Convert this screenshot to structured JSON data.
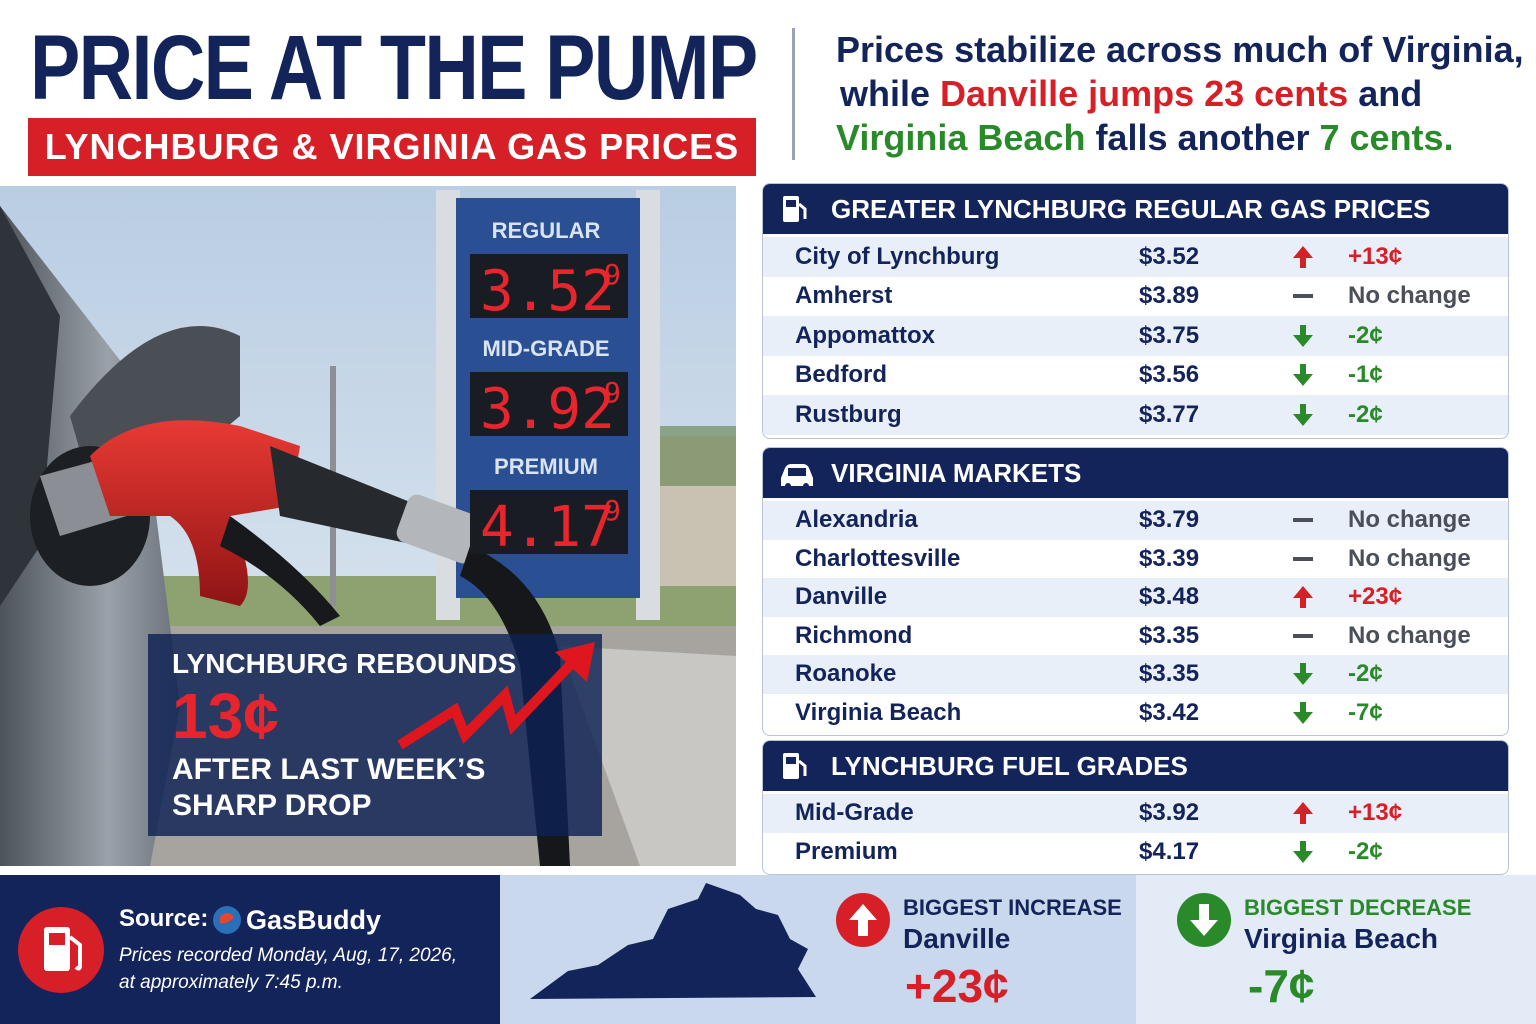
{
  "header": {
    "title": "PRICE AT THE PUMP",
    "subtitle": "LYNCHBURG & VIRGINIA GAS PRICES"
  },
  "headline": {
    "lines": [
      [
        {
          "text": "Prices stabilize across much of Virginia,",
          "tone": "dark"
        }
      ],
      [
        {
          "text": "while ",
          "tone": "dark"
        },
        {
          "text": "Danville jumps 23 cents",
          "tone": "red"
        },
        {
          "text": " and",
          "tone": "dark"
        }
      ],
      [
        {
          "text": "Virginia Beach",
          "tone": "green"
        },
        {
          "text": " falls another ",
          "tone": "dark"
        },
        {
          "text": "7 cents.",
          "tone": "green"
        }
      ]
    ]
  },
  "photo": {
    "sign": [
      {
        "grade": "REGULAR",
        "price": "3.52",
        "fraction": "9"
      },
      {
        "grade": "MID-GRADE",
        "price": "3.92",
        "fraction": "9"
      },
      {
        "grade": "PREMIUM",
        "price": "4.17",
        "fraction": "9"
      }
    ],
    "callout": {
      "line1": "LYNCHBURG REBOUNDS",
      "amount": "13¢",
      "line2": "AFTER LAST WEEK’S",
      "line3": "SHARP DROP"
    }
  },
  "tables": [
    {
      "title": "GREATER LYNCHBURG REGULAR GAS PRICES",
      "icon": "pump",
      "rows": [
        {
          "place": "City of Lynchburg",
          "price": "$3.52",
          "direction": "up",
          "change": "+13¢"
        },
        {
          "place": "Amherst",
          "price": "$3.89",
          "direction": "flat",
          "change": "No change"
        },
        {
          "place": "Appomattox",
          "price": "$3.75",
          "direction": "down",
          "change": "-2¢"
        },
        {
          "place": "Bedford",
          "price": "$3.56",
          "direction": "down",
          "change": "-1¢"
        },
        {
          "place": "Rustburg",
          "price": "$3.77",
          "direction": "down",
          "change": "-2¢"
        }
      ]
    },
    {
      "title": "VIRGINIA MARKETS",
      "icon": "car",
      "rows": [
        {
          "place": "Alexandria",
          "price": "$3.79",
          "direction": "flat",
          "change": "No change"
        },
        {
          "place": "Charlottesville",
          "price": "$3.39",
          "direction": "flat",
          "change": "No change"
        },
        {
          "place": "Danville",
          "price": "$3.48",
          "direction": "up",
          "change": "+23¢"
        },
        {
          "place": "Richmond",
          "price": "$3.35",
          "direction": "flat",
          "change": "No change"
        },
        {
          "place": "Roanoke",
          "price": "$3.35",
          "direction": "down",
          "change": "-2¢"
        },
        {
          "place": "Virginia Beach",
          "price": "$3.42",
          "direction": "down",
          "change": "-7¢"
        }
      ]
    },
    {
      "title": "LYNCHBURG FUEL GRADES",
      "icon": "pump",
      "rows": [
        {
          "place": "Mid-Grade",
          "price": "$3.92",
          "direction": "up",
          "change": "+13¢"
        },
        {
          "place": "Premium",
          "price": "$4.17",
          "direction": "down",
          "change": "-2¢"
        }
      ]
    }
  ],
  "footer": {
    "source_label": "Source:",
    "source": "GasBuddy",
    "note_line1": "Prices recorded Monday, Aug, 17, 2026,",
    "note_line2": "at approximately 7:45 p.m.",
    "increase": {
      "label": "BIGGEST INCREASE",
      "place": "Danville",
      "amount": "+23¢"
    },
    "decrease": {
      "label": "BIGGEST DECREASE",
      "place": "Virginia Beach",
      "amount": "-7¢"
    }
  }
}
